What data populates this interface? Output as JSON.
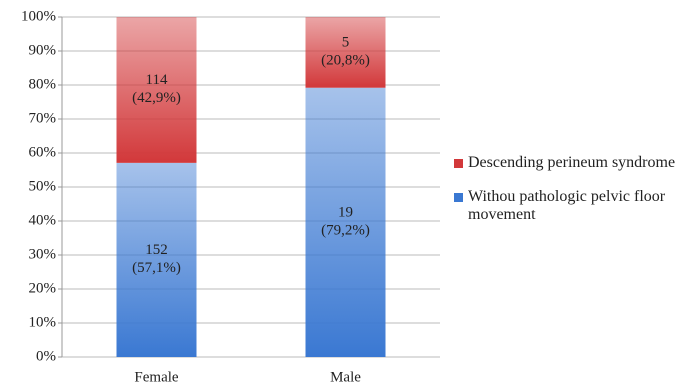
{
  "chart_data": {
    "type": "stacked-bar",
    "categories": [
      "Female",
      "Male"
    ],
    "series": [
      {
        "name": "Withou pathologic pelvic floor movement",
        "color": "#3a78d2",
        "values": [
          57.1,
          79.2
        ],
        "value_labels": [
          [
            "152",
            "(57,1%)"
          ],
          [
            "19",
            "(79,2%)"
          ]
        ]
      },
      {
        "name": "Descending perineum syndrome",
        "color": "#d2383a",
        "values": [
          42.9,
          20.8
        ],
        "value_labels": [
          [
            "114",
            "(42,9%)"
          ],
          [
            "5",
            "(20,8%)"
          ]
        ]
      }
    ],
    "ylim": [
      0,
      100
    ],
    "yticks": [
      {
        "value": 0,
        "label": "0%"
      },
      {
        "value": 10,
        "label": "10%"
      },
      {
        "value": 20,
        "label": "20%"
      },
      {
        "value": 30,
        "label": "30%"
      },
      {
        "value": 40,
        "label": "40%"
      },
      {
        "value": 50,
        "label": "50%"
      },
      {
        "value": 60,
        "label": "60%"
      },
      {
        "value": 70,
        "label": "70%"
      },
      {
        "value": 80,
        "label": "80%"
      },
      {
        "value": 90,
        "label": "90%"
      },
      {
        "value": 100,
        "label": "100%"
      }
    ],
    "grid": true,
    "legend": "right"
  }
}
